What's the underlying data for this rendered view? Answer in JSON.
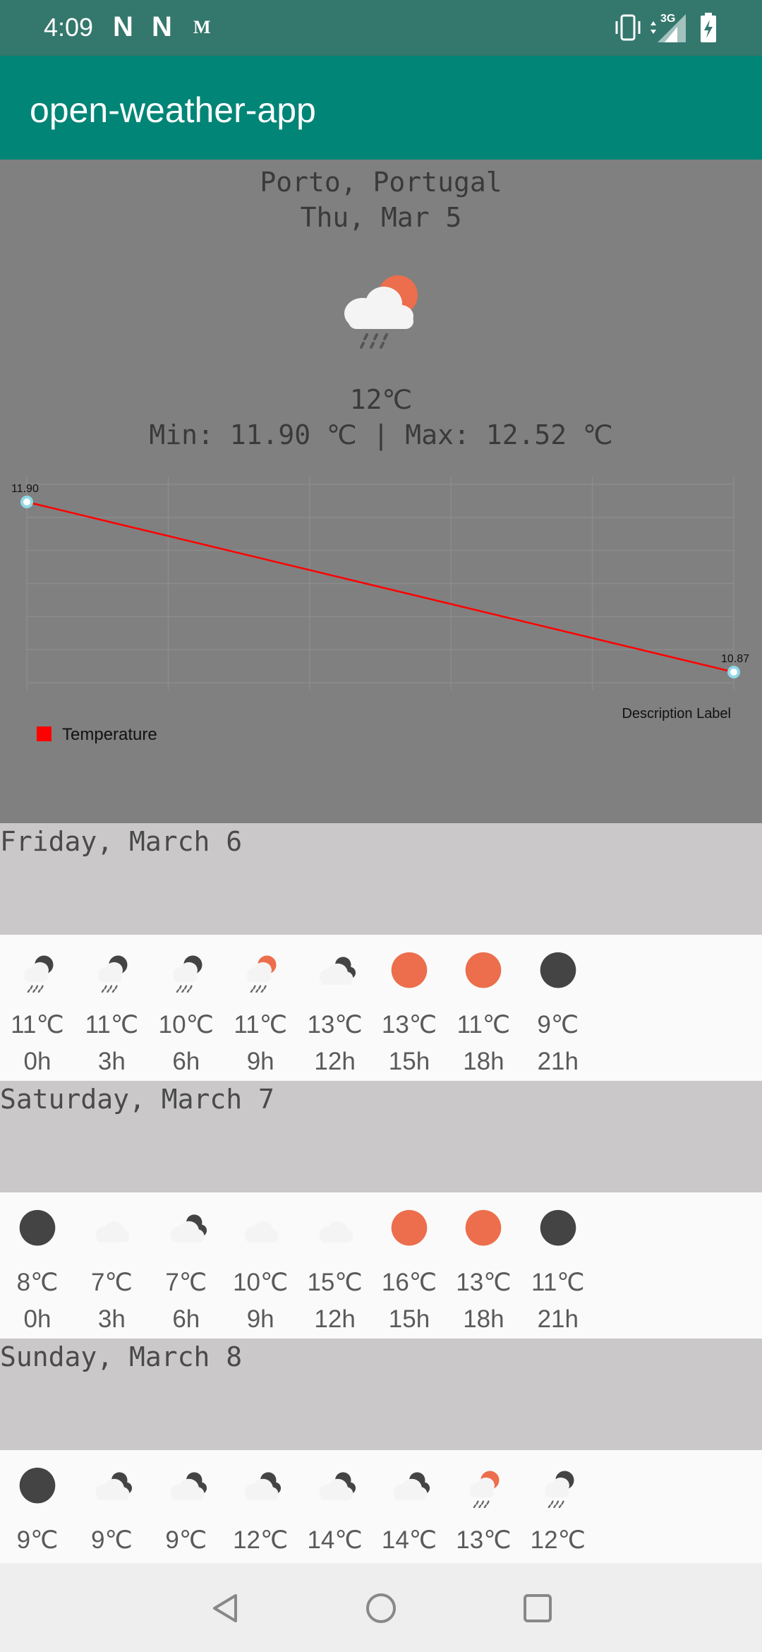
{
  "status_bar": {
    "time": "4:09",
    "notif_icons": [
      "N",
      "N",
      "M"
    ],
    "right_icons": [
      "vibrate-icon",
      "signal-3g-icon",
      "battery-charging-icon"
    ],
    "network_label": "3G"
  },
  "app_bar": {
    "title": "open-weather-app"
  },
  "current": {
    "city": "Porto, Portugal",
    "date": "Thu, Mar 5",
    "icon": "rain-cloud-sun-icon",
    "temp": "12℃",
    "minmax": "Min: 11.90 ℃ | Max: 12.52 ℃"
  },
  "chart_data": {
    "type": "line",
    "x": [
      0,
      5
    ],
    "series": [
      {
        "name": "Temperature",
        "values": [
          11.9,
          10.87
        ],
        "labels": [
          "11.90",
          "10.87"
        ],
        "color": "#ff0000"
      }
    ],
    "legend": "bottom-left",
    "description": "Description Label",
    "grid": true
  },
  "forecast": [
    {
      "title": "Friday, March 6",
      "slots": [
        {
          "temp": "11℃",
          "hour": "0h",
          "icon": "rain-moon-icon"
        },
        {
          "temp": "11℃",
          "hour": "3h",
          "icon": "rain-moon-icon"
        },
        {
          "temp": "10℃",
          "hour": "6h",
          "icon": "rain-moon-icon"
        },
        {
          "temp": "11℃",
          "hour": "9h",
          "icon": "rain-sun-icon"
        },
        {
          "temp": "13℃",
          "hour": "12h",
          "icon": "cloud-moon-icon"
        },
        {
          "temp": "13℃",
          "hour": "15h",
          "icon": "sun-icon"
        },
        {
          "temp": "11℃",
          "hour": "18h",
          "icon": "sun-icon"
        },
        {
          "temp": "9℃",
          "hour": "21h",
          "icon": "moon-icon"
        }
      ]
    },
    {
      "title": "Saturday, March 7",
      "slots": [
        {
          "temp": "8℃",
          "hour": "0h",
          "icon": "moon-icon"
        },
        {
          "temp": "7℃",
          "hour": "3h",
          "icon": "cloud-icon"
        },
        {
          "temp": "7℃",
          "hour": "6h",
          "icon": "cloud-moon-icon"
        },
        {
          "temp": "10℃",
          "hour": "9h",
          "icon": "cloud-icon"
        },
        {
          "temp": "15℃",
          "hour": "12h",
          "icon": "cloud-icon"
        },
        {
          "temp": "16℃",
          "hour": "15h",
          "icon": "sun-icon"
        },
        {
          "temp": "13℃",
          "hour": "18h",
          "icon": "sun-icon"
        },
        {
          "temp": "11℃",
          "hour": "21h",
          "icon": "moon-icon"
        }
      ]
    },
    {
      "title": "Sunday, March 8",
      "slots": [
        {
          "temp": "9℃",
          "hour": "",
          "icon": "moon-icon"
        },
        {
          "temp": "9℃",
          "hour": "",
          "icon": "cloud-moon-icon"
        },
        {
          "temp": "9℃",
          "hour": "",
          "icon": "cloud-moon-icon"
        },
        {
          "temp": "12℃",
          "hour": "",
          "icon": "cloud-moon-icon"
        },
        {
          "temp": "14℃",
          "hour": "",
          "icon": "cloud-moon-icon"
        },
        {
          "temp": "14℃",
          "hour": "",
          "icon": "cloud-moon-icon"
        },
        {
          "temp": "13℃",
          "hour": "",
          "icon": "rain-sun-icon"
        },
        {
          "temp": "12℃",
          "hour": "",
          "icon": "rain-moon-icon"
        }
      ]
    }
  ],
  "nav_bar": {
    "buttons": [
      "back-icon",
      "home-icon",
      "recents-icon"
    ]
  },
  "colors": {
    "status_bar": "#34776d",
    "app_bar": "#008577",
    "sun": "#ec6e4c",
    "moon": "#444444",
    "cloud": "#f4f4f4",
    "chart_line": "#ff0000"
  }
}
